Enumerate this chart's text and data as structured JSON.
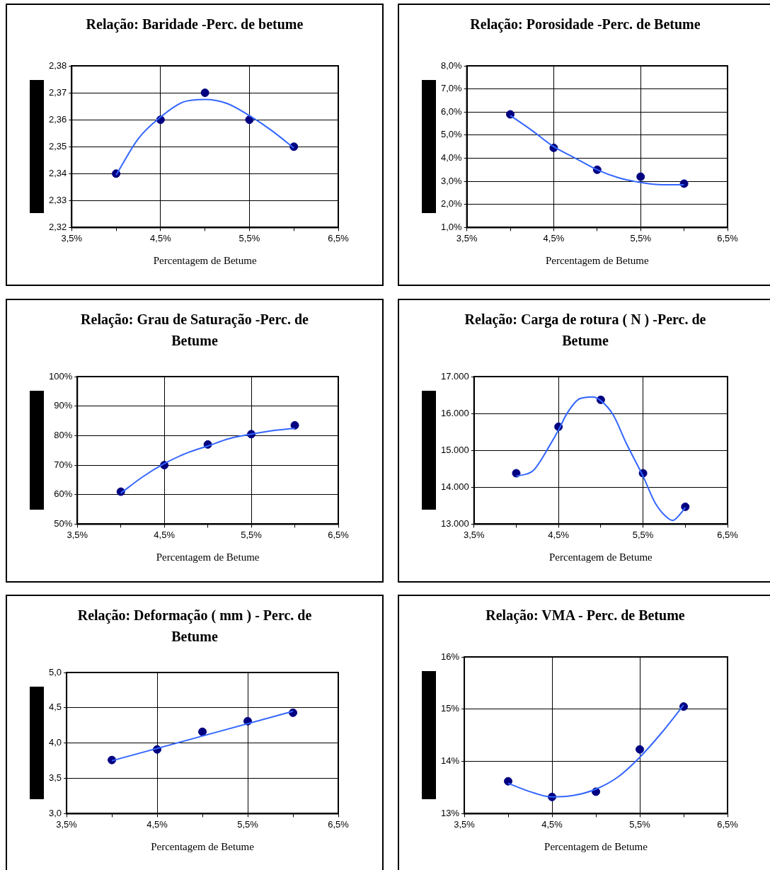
{
  "chart_data": [
    {
      "type": "scatter",
      "title": "Relação: Baridade -Perc. de betume",
      "xlabel": "Percentagem de Betume",
      "xlim": [
        3.5,
        6.5
      ],
      "xticks": [
        {
          "value": 3.5,
          "label": "3,5%"
        },
        {
          "value": 4,
          "label": null
        },
        {
          "value": 4.5,
          "label": "4,5%"
        },
        {
          "value": 5,
          "label": null
        },
        {
          "value": 5.5,
          "label": "5,5%"
        },
        {
          "value": 6,
          "label": null
        },
        {
          "value": 6.5,
          "label": "6,5%"
        }
      ],
      "ylim": [
        2.32,
        2.38
      ],
      "yticks": [
        {
          "value": 2.32,
          "label": "2,32"
        },
        {
          "value": 2.33,
          "label": "2,33"
        },
        {
          "value": 2.34,
          "label": "2,34"
        },
        {
          "value": 2.35,
          "label": "2,35"
        },
        {
          "value": 2.36,
          "label": "2,36"
        },
        {
          "value": 2.37,
          "label": "2,37"
        },
        {
          "value": 2.38,
          "label": "2,38"
        }
      ],
      "grid": true,
      "marker": "circle",
      "series": [
        {
          "type": "line",
          "color": "#3366ff",
          "marker": "none",
          "x": [
            4,
            4.25,
            4.5,
            4.75,
            5,
            5.25,
            5.5,
            5.75,
            6
          ],
          "values": [
            2.3395,
            2.353,
            2.361,
            2.3665,
            2.3675,
            2.366,
            2.3615,
            2.356,
            2.3495
          ]
        },
        {
          "type": "scatter",
          "color": "#000080",
          "x": [
            4,
            4.5,
            5,
            5.5,
            6
          ],
          "values": [
            2.34,
            2.36,
            2.37,
            2.36,
            2.35
          ]
        }
      ]
    },
    {
      "type": "scatter",
      "title": "Relação: Porosidade -Perc. de Betume",
      "xlabel": "Percentagem de Betume",
      "xlim": [
        3.5,
        6.5
      ],
      "xticks": [
        {
          "value": 3.5,
          "label": "3,5%"
        },
        {
          "value": 4,
          "label": null
        },
        {
          "value": 4.5,
          "label": "4,5%"
        },
        {
          "value": 5,
          "label": null
        },
        {
          "value": 5.5,
          "label": "5,5%"
        },
        {
          "value": 6,
          "label": null
        },
        {
          "value": 6.5,
          "label": "6,5%"
        }
      ],
      "ylim": [
        1,
        8
      ],
      "yticks": [
        {
          "value": 1,
          "label": "1,0%"
        },
        {
          "value": 2,
          "label": "2,0%"
        },
        {
          "value": 3,
          "label": "3,0%"
        },
        {
          "value": 4,
          "label": "4,0%"
        },
        {
          "value": 5,
          "label": "5,0%"
        },
        {
          "value": 6,
          "label": "6,0%"
        },
        {
          "value": 7,
          "label": "7,0%"
        },
        {
          "value": 8,
          "label": "8,0%"
        }
      ],
      "grid": true,
      "marker": "circle",
      "series": [
        {
          "type": "line",
          "color": "#3366ff",
          "marker": "none",
          "x": [
            4,
            4.25,
            4.5,
            4.75,
            5,
            5.25,
            5.5,
            5.75,
            6
          ],
          "values": [
            5.85,
            5.2,
            4.5,
            4.0,
            3.5,
            3.15,
            2.95,
            2.85,
            2.85
          ]
        },
        {
          "type": "scatter",
          "color": "#000080",
          "x": [
            4,
            4.5,
            5,
            5.5,
            6
          ],
          "values": [
            5.9,
            4.45,
            3.5,
            3.2,
            2.9
          ]
        }
      ]
    },
    {
      "type": "scatter",
      "title": "Relação: Grau de Saturação -Perc. de Betume",
      "xlabel": "Percentagem de Betume",
      "xlim": [
        3.5,
        6.5
      ],
      "xticks": [
        {
          "value": 3.5,
          "label": "3,5%"
        },
        {
          "value": 4,
          "label": null
        },
        {
          "value": 4.5,
          "label": "4,5%"
        },
        {
          "value": 5,
          "label": null
        },
        {
          "value": 5.5,
          "label": "5,5%"
        },
        {
          "value": 6,
          "label": null
        },
        {
          "value": 6.5,
          "label": "6,5%"
        }
      ],
      "ylim": [
        50,
        100
      ],
      "yticks": [
        {
          "value": 50,
          "label": "50%"
        },
        {
          "value": 60,
          "label": "60%"
        },
        {
          "value": 70,
          "label": "70%"
        },
        {
          "value": 80,
          "label": "80%"
        },
        {
          "value": 90,
          "label": "90%"
        },
        {
          "value": 100,
          "label": "100%"
        }
      ],
      "grid": true,
      "marker": "circle",
      "series": [
        {
          "type": "line",
          "color": "#3366ff",
          "marker": "none",
          "x": [
            4,
            4.25,
            4.5,
            4.75,
            5,
            5.25,
            5.5,
            5.75,
            6
          ],
          "values": [
            60.5,
            66,
            70.5,
            74,
            76.5,
            79,
            80.5,
            81.7,
            82.5
          ]
        },
        {
          "type": "scatter",
          "color": "#000080",
          "x": [
            4,
            4.5,
            5,
            5.5,
            6
          ],
          "values": [
            61,
            70,
            77,
            80.5,
            83.5
          ]
        }
      ]
    },
    {
      "type": "scatter",
      "title": "Relação: Carga de rotura ( N ) -Perc. de Betume",
      "xlabel": "Percentagem de Betume",
      "xlim": [
        3.5,
        6.5
      ],
      "xticks": [
        {
          "value": 3.5,
          "label": "3,5%"
        },
        {
          "value": 4,
          "label": null
        },
        {
          "value": 4.5,
          "label": "4,5%"
        },
        {
          "value": 5,
          "label": null
        },
        {
          "value": 5.5,
          "label": "5,5%"
        },
        {
          "value": 6,
          "label": null
        },
        {
          "value": 6.5,
          "label": "6,5%"
        }
      ],
      "ylim": [
        13000,
        17000
      ],
      "yticks": [
        {
          "value": 13000,
          "label": "13.000"
        },
        {
          "value": 14000,
          "label": "14.000"
        },
        {
          "value": 15000,
          "label": "15.000"
        },
        {
          "value": 16000,
          "label": "16.000"
        },
        {
          "value": 17000,
          "label": "17.000"
        }
      ],
      "grid": true,
      "marker": "circle",
      "series": [
        {
          "type": "line",
          "color": "#3366ff",
          "marker": "none",
          "x": [
            4,
            4.2,
            4.4,
            4.5,
            4.6,
            4.75,
            4.9,
            5,
            5.15,
            5.3,
            5.5,
            5.65,
            5.8,
            5.85,
            5.95,
            6
          ],
          "values": [
            14300,
            14450,
            15150,
            15550,
            16000,
            16400,
            16450,
            16350,
            15950,
            15200,
            14300,
            13550,
            13150,
            13100,
            13300,
            13450
          ]
        },
        {
          "type": "scatter",
          "color": "#000080",
          "x": [
            4,
            4.5,
            5,
            5.5,
            6
          ],
          "values": [
            14380,
            15640,
            16370,
            14380,
            13470
          ]
        }
      ]
    },
    {
      "type": "scatter",
      "title": "Relação: Deformação ( mm ) - Perc. de Betume",
      "xlabel": "Percentagem de Betume",
      "xlim": [
        3.5,
        6.5
      ],
      "xticks": [
        {
          "value": 3.5,
          "label": "3,5%"
        },
        {
          "value": 4,
          "label": null
        },
        {
          "value": 4.5,
          "label": "4,5%"
        },
        {
          "value": 5,
          "label": null
        },
        {
          "value": 5.5,
          "label": "5,5%"
        },
        {
          "value": 6,
          "label": null
        },
        {
          "value": 6.5,
          "label": "6,5%"
        }
      ],
      "ylim": [
        3,
        5
      ],
      "yticks": [
        {
          "value": 3,
          "label": "3,0"
        },
        {
          "value": 3.5,
          "label": "3,5"
        },
        {
          "value": 4,
          "label": "4,0"
        },
        {
          "value": 4.5,
          "label": "4,5"
        },
        {
          "value": 5,
          "label": "5,0"
        }
      ],
      "grid": true,
      "marker": "circle",
      "series": [
        {
          "type": "line",
          "color": "#3366ff",
          "marker": "none",
          "x": [
            4,
            6
          ],
          "values": [
            3.75,
            4.45
          ]
        },
        {
          "type": "scatter",
          "color": "#000080",
          "x": [
            4,
            4.5,
            5,
            5.5,
            6
          ],
          "values": [
            3.76,
            3.91,
            4.16,
            4.31,
            4.43
          ]
        }
      ]
    },
    {
      "type": "scatter",
      "title": "Relação: VMA - Perc. de Betume",
      "xlabel": "Percentagem de Betume",
      "xlim": [
        3.5,
        6.5
      ],
      "xticks": [
        {
          "value": 3.5,
          "label": "3,5%"
        },
        {
          "value": 4,
          "label": null
        },
        {
          "value": 4.5,
          "label": "4,5%"
        },
        {
          "value": 5,
          "label": null
        },
        {
          "value": 5.5,
          "label": "5,5%"
        },
        {
          "value": 6,
          "label": null
        },
        {
          "value": 6.5,
          "label": "6,5%"
        }
      ],
      "ylim": [
        13,
        16
      ],
      "yticks": [
        {
          "value": 13,
          "label": "13%"
        },
        {
          "value": 14,
          "label": "14%"
        },
        {
          "value": 15,
          "label": "15%"
        },
        {
          "value": 16,
          "label": "16%"
        }
      ],
      "grid": true,
      "marker": "circle",
      "series": [
        {
          "type": "line",
          "color": "#3366ff",
          "marker": "none",
          "x": [
            4,
            4.25,
            4.5,
            4.75,
            5,
            5.25,
            5.5,
            5.75,
            6
          ],
          "values": [
            13.58,
            13.42,
            13.32,
            13.35,
            13.47,
            13.7,
            14.08,
            14.55,
            15.08
          ]
        },
        {
          "type": "scatter",
          "color": "#000080",
          "x": [
            4,
            4.5,
            5,
            5.5,
            6
          ],
          "values": [
            13.62,
            13.32,
            13.42,
            14.23,
            15.05
          ]
        }
      ]
    }
  ]
}
